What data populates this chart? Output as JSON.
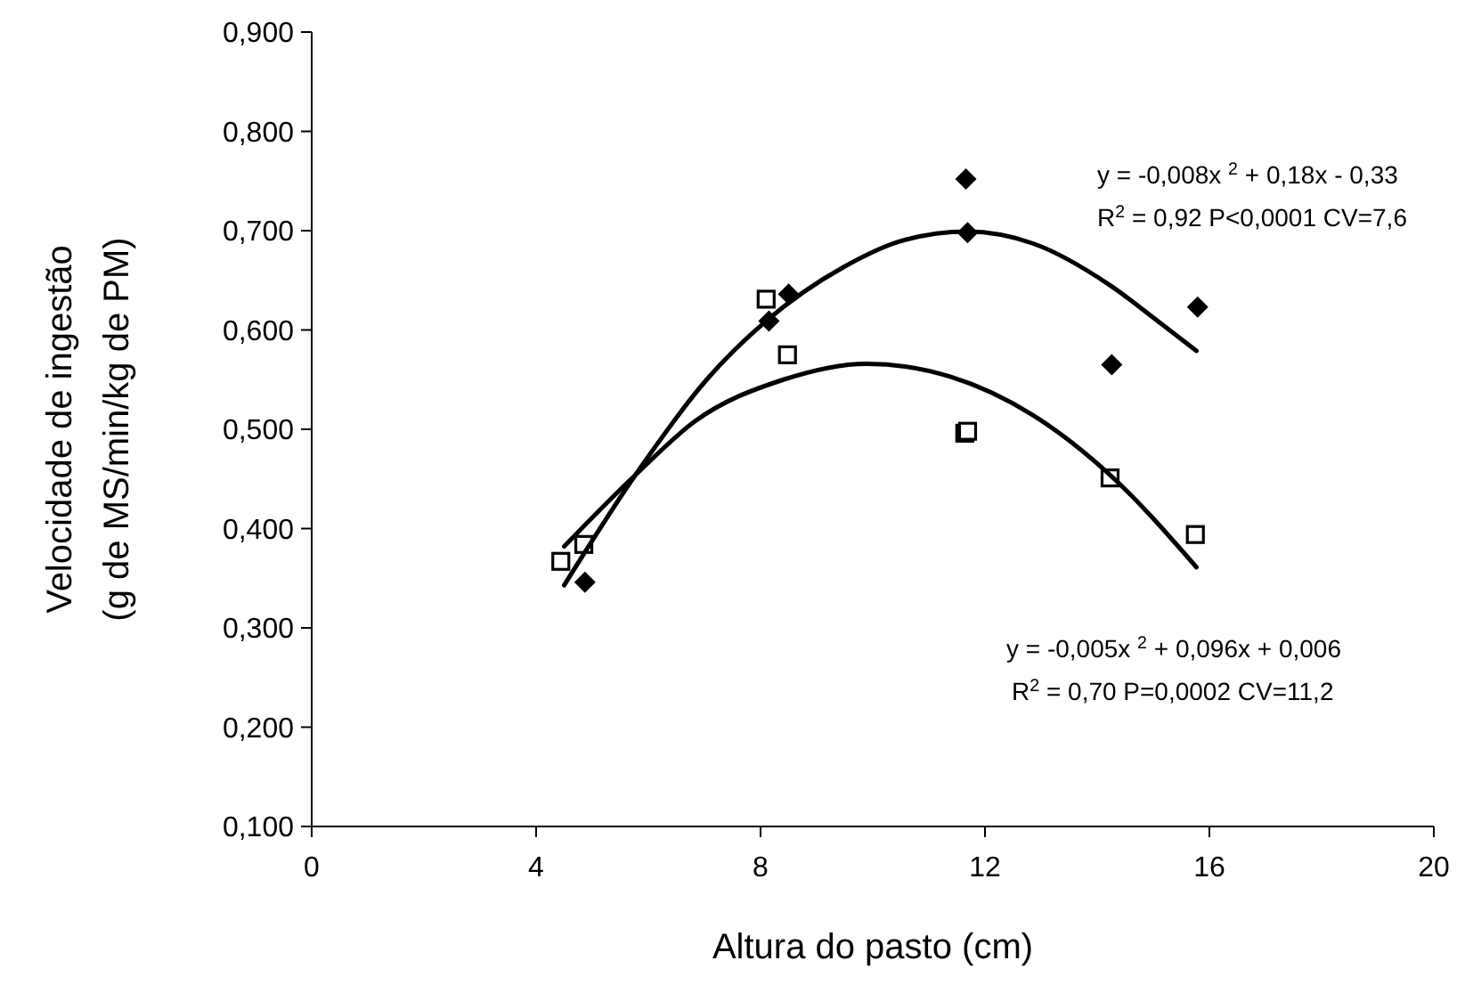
{
  "chart_data": {
    "type": "scatter",
    "xlabel": "Altura do pasto (cm)",
    "ylabel": "Velocidade de ingestão\n(g de MS/min/kg de PM)",
    "xlim": [
      0,
      20
    ],
    "xticks": [
      0,
      4,
      8,
      12,
      16,
      20
    ],
    "ylim": [
      0.1,
      0.9
    ],
    "yticks": [
      {
        "value": 0.1,
        "label": "0,100"
      },
      {
        "value": 0.2,
        "label": "0,200"
      },
      {
        "value": 0.3,
        "label": "0,300"
      },
      {
        "value": 0.4,
        "label": "0,400"
      },
      {
        "value": 0.5,
        "label": "0,500"
      },
      {
        "value": 0.6,
        "label": "0,600"
      },
      {
        "value": 0.7,
        "label": "0,700"
      },
      {
        "value": 0.8,
        "label": "0,800"
      },
      {
        "value": 0.9,
        "label": "0,900"
      }
    ],
    "grid": false,
    "series": [
      {
        "marker": "diamond",
        "color": "#000000",
        "x": [
          4.87,
          8.15,
          8.5,
          11.66,
          11.69,
          14.26,
          15.79
        ],
        "values": [
          0.346,
          0.609,
          0.636,
          0.752,
          0.698,
          0.565,
          0.623
        ]
      },
      {
        "marker": "square",
        "color": "#000000",
        "x": [
          4.44,
          4.85,
          8.1,
          8.48,
          11.64,
          11.69,
          14.23,
          15.75
        ],
        "values": [
          0.367,
          0.384,
          0.631,
          0.575,
          0.496,
          0.498,
          0.451,
          0.394
        ]
      },
      {
        "type": "line",
        "marker": "none",
        "line_style": "solid",
        "color": "#000000",
        "x": [
          4.5,
          5.77,
          7.04,
          8.1,
          9.47,
          10.53,
          11.69,
          12.86,
          14.23,
          15.08,
          15.77
        ],
        "values": [
          0.343,
          0.454,
          0.55,
          0.609,
          0.663,
          0.69,
          0.699,
          0.687,
          0.645,
          0.609,
          0.579
        ]
      },
      {
        "type": "line",
        "marker": "none",
        "line_style": "solid",
        "color": "#000000",
        "x": [
          4.5,
          5.77,
          6.83,
          8.41,
          9.89,
          11.38,
          12.86,
          14.23,
          15.77
        ],
        "values": [
          0.382,
          0.454,
          0.508,
          0.55,
          0.566,
          0.553,
          0.514,
          0.454,
          0.361
        ]
      }
    ],
    "annotations": [
      "y = -0,008x $^{2}$ + 0,18x - 0,33",
      "R$^{2}$ = 0,92 P<0,0001 CV=7,6",
      "y = -0,005x $^{2}$ + 0,096x + 0,006",
      "R$^{2}$ = 0,70 P=0,0002 CV=11,2"
    ]
  }
}
